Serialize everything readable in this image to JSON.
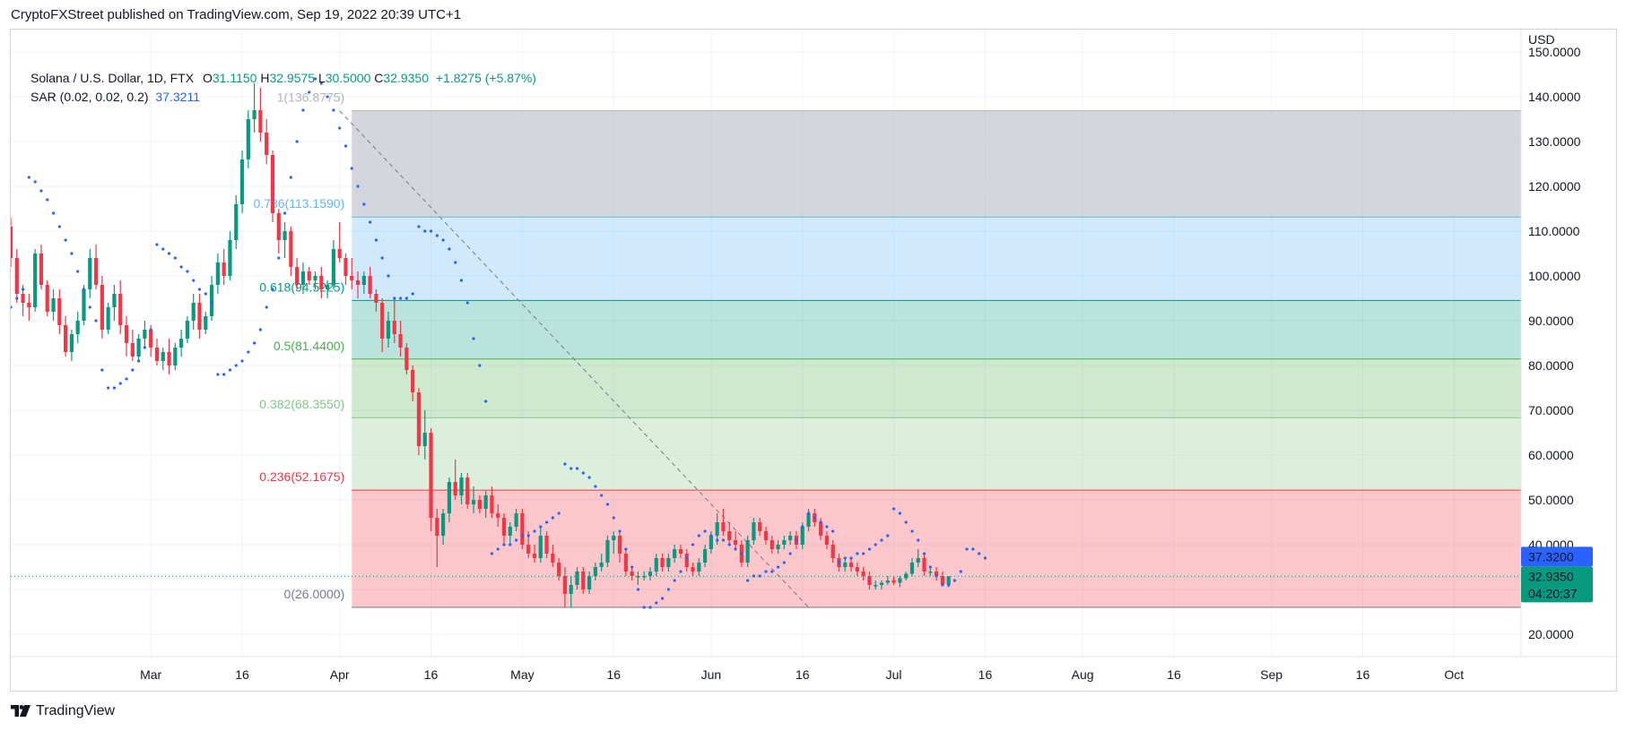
{
  "header": {
    "text": "CryptoFXStreet published on TradingView.com, Sep 19, 2022 20:39 UTC+1"
  },
  "legend": {
    "symbol": "Solana / U.S. Dollar, 1D, FTX",
    "open_label": "O",
    "open": "31.1150",
    "high_label": "H",
    "high": "32.9575",
    "low_label": "L",
    "low": "30.5000",
    "close_label": "C",
    "close": "32.9350",
    "change": "+1.8275 (+5.87%)",
    "indicator": "SAR (0.02, 0.02, 0.2)",
    "indicator_value": "37.3211"
  },
  "footer": {
    "brand": "TradingView"
  },
  "colors": {
    "up": "#089981",
    "down": "#f23645",
    "sar": "#2962ff",
    "fib_1": "#b2b5be",
    "fib_0786": "#64b5f6",
    "fib_0618": "#089981",
    "fib_05": "#4caf50",
    "fib_0382": "#81c784",
    "fib_0236": "#f23645",
    "fib_0": "#787b86"
  },
  "chart_data": {
    "type": "candlestick",
    "currency": "USD",
    "ylim": [
      15,
      155
    ],
    "y_ticks": [
      "150.0000",
      "140.0000",
      "130.0000",
      "120.0000",
      "110.0000",
      "100.0000",
      "90.0000",
      "80.0000",
      "70.0000",
      "60.0000",
      "50.0000",
      "40.0000",
      "30.0000",
      "20.0000"
    ],
    "y_tick_values": [
      150,
      140,
      130,
      120,
      110,
      100,
      90,
      80,
      70,
      60,
      50,
      40,
      30,
      20
    ],
    "x_ticks": [
      "Mar",
      "16",
      "Apr",
      "16",
      "May",
      "16",
      "Jun",
      "16",
      "Jul",
      "16",
      "Aug",
      "16",
      "Sep",
      "16",
      "Oct"
    ],
    "x_tick_days": [
      32,
      47,
      63,
      78,
      93,
      108,
      124,
      139,
      154,
      169,
      185,
      200,
      216,
      231,
      246
    ],
    "day_range": [
      9,
      257
    ],
    "candles_start_day": 9,
    "fibonacci": [
      {
        "level": "1",
        "label": "1(136.8775)",
        "price": 136.8775,
        "key": "fib_1"
      },
      {
        "level": "0.786",
        "label": "0.786(113.1590)",
        "price": 113.159,
        "key": "fib_0786"
      },
      {
        "level": "0.618",
        "label": "0.618(94.5225)",
        "price": 94.5225,
        "key": "fib_0618"
      },
      {
        "level": "0.5",
        "label": "0.5(81.4400)",
        "price": 81.44,
        "key": "fib_05"
      },
      {
        "level": "0.382",
        "label": "0.382(68.3550)",
        "price": 68.355,
        "key": "fib_0382"
      },
      {
        "level": "0.236",
        "label": "0.236(52.1675)",
        "price": 52.1675,
        "key": "fib_0236"
      },
      {
        "level": "0",
        "label": "0(26.0000)",
        "price": 26.0,
        "key": "fib_0"
      }
    ],
    "fib_start_day": 65,
    "trend_line": {
      "from_day": 63,
      "from_price": 136.8775,
      "to_day": 140,
      "to_price": 26.0
    },
    "sar_label": "37.3200",
    "sar_label_price": 37.32,
    "last_price_label": "32.9350",
    "countdown": "04:20:37",
    "last_price": 32.935,
    "ohlc": [
      [
        111,
        113,
        102,
        104
      ],
      [
        104,
        106,
        94,
        96
      ],
      [
        96,
        98,
        91,
        94
      ],
      [
        94,
        96,
        90,
        93
      ],
      [
        93,
        106,
        92,
        105
      ],
      [
        105,
        107,
        97,
        98
      ],
      [
        98,
        99,
        91,
        92
      ],
      [
        92,
        97,
        90,
        95
      ],
      [
        95,
        97,
        87,
        89
      ],
      [
        89,
        91,
        82,
        83
      ],
      [
        83,
        88,
        81,
        87
      ],
      [
        87,
        92,
        85,
        90
      ],
      [
        90,
        98,
        89,
        97
      ],
      [
        97,
        106,
        95,
        104
      ],
      [
        104,
        107,
        97,
        98
      ],
      [
        98,
        100,
        86,
        88
      ],
      [
        88,
        94,
        87,
        93
      ],
      [
        93,
        98,
        90,
        96
      ],
      [
        96,
        99,
        87,
        89
      ],
      [
        89,
        91,
        82,
        85
      ],
      [
        85,
        88,
        81,
        82
      ],
      [
        82,
        87,
        81,
        86
      ],
      [
        86,
        90,
        84,
        88
      ],
      [
        88,
        89,
        82,
        84
      ],
      [
        84,
        86,
        80,
        81
      ],
      [
        81,
        84,
        79,
        83
      ],
      [
        83,
        86,
        78,
        80
      ],
      [
        80,
        85,
        79,
        84
      ],
      [
        84,
        88,
        82,
        86
      ],
      [
        86,
        91,
        85,
        90
      ],
      [
        90,
        96,
        88,
        94
      ],
      [
        94,
        96,
        86,
        88
      ],
      [
        88,
        92,
        87,
        91
      ],
      [
        91,
        100,
        90,
        98
      ],
      [
        98,
        105,
        96,
        103
      ],
      [
        103,
        106,
        98,
        100
      ],
      [
        100,
        110,
        99,
        108
      ],
      [
        108,
        118,
        106,
        116
      ],
      [
        116,
        128,
        114,
        126
      ],
      [
        126,
        137,
        124,
        135
      ],
      [
        135,
        143,
        132,
        137
      ],
      [
        137,
        142,
        130,
        132
      ],
      [
        132,
        135,
        125,
        127
      ],
      [
        127,
        128,
        112,
        114
      ],
      [
        114,
        115,
        105,
        108
      ],
      [
        108,
        112,
        104,
        110
      ],
      [
        110,
        111,
        100,
        102
      ],
      [
        102,
        104,
        97,
        98
      ],
      [
        98,
        103,
        96,
        101
      ],
      [
        101,
        102,
        98,
        99
      ],
      [
        99,
        101,
        97,
        100
      ],
      [
        100,
        102,
        95,
        97
      ],
      [
        97,
        99,
        95,
        98
      ],
      [
        98,
        108,
        97,
        106
      ],
      [
        106,
        112,
        103,
        104
      ],
      [
        104,
        105,
        98,
        100
      ],
      [
        100,
        104,
        97,
        99
      ],
      [
        99,
        101,
        95,
        98
      ],
      [
        98,
        101,
        96,
        100
      ],
      [
        100,
        102,
        95,
        96
      ],
      [
        96,
        97,
        92,
        94
      ],
      [
        94,
        95,
        83,
        86
      ],
      [
        86,
        92,
        84,
        90
      ],
      [
        90,
        95,
        85,
        87
      ],
      [
        87,
        90,
        82,
        84
      ],
      [
        84,
        85,
        78,
        79
      ],
      [
        79,
        80,
        72,
        74
      ],
      [
        74,
        75,
        60,
        62
      ],
      [
        62,
        70,
        59,
        65
      ],
      [
        65,
        66,
        43,
        46
      ],
      [
        46,
        48,
        35,
        42
      ],
      [
        42,
        48,
        40,
        47
      ],
      [
        47,
        55,
        45,
        54
      ],
      [
        54,
        59,
        50,
        51
      ],
      [
        51,
        56,
        49,
        55
      ],
      [
        55,
        56,
        48,
        49
      ],
      [
        49,
        53,
        47,
        50
      ],
      [
        50,
        51,
        47,
        48
      ],
      [
        48,
        52,
        46,
        51
      ],
      [
        51,
        53,
        46,
        47
      ],
      [
        47,
        49,
        44,
        46
      ],
      [
        46,
        47,
        40,
        42
      ],
      [
        42,
        45,
        40,
        44
      ],
      [
        44,
        48,
        43,
        47
      ],
      [
        47,
        48,
        39,
        40
      ],
      [
        40,
        43,
        37,
        38
      ],
      [
        38,
        40,
        36,
        37
      ],
      [
        37,
        44,
        36,
        42
      ],
      [
        42,
        43,
        37,
        38
      ],
      [
        38,
        40,
        35,
        36
      ],
      [
        36,
        37,
        32,
        33
      ],
      [
        33,
        35,
        26,
        29
      ],
      [
        29,
        33,
        26,
        31
      ],
      [
        31,
        35,
        30,
        34
      ],
      [
        34,
        35,
        29,
        30
      ],
      [
        30,
        34,
        29,
        33
      ],
      [
        33,
        36,
        32,
        35
      ],
      [
        35,
        38,
        34,
        36
      ],
      [
        36,
        42,
        35,
        41
      ],
      [
        41,
        43,
        38,
        42
      ],
      [
        42,
        43,
        36,
        38
      ],
      [
        38,
        39,
        33,
        34
      ],
      [
        34,
        35,
        32,
        33
      ],
      [
        33,
        34,
        31,
        33
      ],
      [
        33,
        34,
        32,
        33
      ],
      [
        33,
        35,
        32,
        34
      ],
      [
        34,
        38,
        33,
        37
      ],
      [
        37,
        38,
        34,
        35
      ],
      [
        35,
        38,
        34,
        37
      ],
      [
        37,
        40,
        36,
        39
      ],
      [
        39,
        40,
        37,
        38
      ],
      [
        38,
        39,
        34,
        35
      ],
      [
        35,
        36,
        33,
        34
      ],
      [
        34,
        37,
        33,
        36
      ],
      [
        36,
        40,
        35,
        39
      ],
      [
        39,
        43,
        38,
        42
      ],
      [
        42,
        47,
        40,
        45
      ],
      [
        45,
        48,
        42,
        43
      ],
      [
        43,
        45,
        40,
        41
      ],
      [
        41,
        43,
        39,
        40
      ],
      [
        40,
        41,
        35,
        36
      ],
      [
        36,
        42,
        35,
        41
      ],
      [
        41,
        46,
        40,
        45
      ],
      [
        45,
        46,
        42,
        43
      ],
      [
        43,
        44,
        40,
        41
      ],
      [
        41,
        42,
        38,
        39
      ],
      [
        39,
        41,
        38,
        40
      ],
      [
        40,
        42,
        39,
        41
      ],
      [
        41,
        43,
        40,
        42
      ],
      [
        42,
        43,
        39,
        40
      ],
      [
        40,
        45,
        39,
        44
      ],
      [
        44,
        48,
        43,
        47
      ],
      [
        47,
        48,
        44,
        45
      ],
      [
        45,
        46,
        41,
        42
      ],
      [
        42,
        43,
        39,
        40
      ],
      [
        40,
        41,
        36,
        37
      ],
      [
        37,
        38,
        34,
        35
      ],
      [
        35,
        37,
        34,
        36
      ],
      [
        36,
        37,
        34,
        35
      ],
      [
        35,
        36,
        33,
        34
      ],
      [
        34,
        35,
        32,
        33
      ],
      [
        33,
        34,
        30,
        31
      ],
      [
        31,
        32,
        30,
        31
      ],
      [
        31,
        32,
        30,
        31.5
      ],
      [
        31.5,
        33,
        31,
        32
      ],
      [
        32,
        33,
        31,
        31.5
      ],
      [
        31.5,
        33,
        30.5,
        32.5
      ],
      [
        32.5,
        34,
        32,
        33.5
      ],
      [
        33.5,
        37,
        33,
        36
      ],
      [
        36,
        39,
        35,
        37
      ],
      [
        37,
        38,
        33,
        34
      ],
      [
        34,
        35,
        33,
        34
      ],
      [
        34,
        35,
        32,
        33
      ],
      [
        33,
        34,
        31,
        31.1
      ],
      [
        31.115,
        32.9575,
        30.5,
        32.935
      ]
    ],
    "sar": [
      [
        9,
        93
      ],
      [
        10,
        95
      ],
      [
        11,
        97
      ],
      [
        12,
        122
      ],
      [
        13,
        121
      ],
      [
        14,
        119
      ],
      [
        15,
        117
      ],
      [
        16,
        114
      ],
      [
        17,
        111
      ],
      [
        18,
        108
      ],
      [
        19,
        105
      ],
      [
        20,
        101
      ],
      [
        21,
        97
      ],
      [
        22,
        93
      ],
      [
        23,
        90
      ],
      [
        24,
        79
      ],
      [
        25,
        75
      ],
      [
        26,
        75
      ],
      [
        27,
        76
      ],
      [
        28,
        77
      ],
      [
        29,
        79
      ],
      [
        30,
        81
      ],
      [
        31,
        84
      ],
      [
        32,
        88
      ],
      [
        33,
        107
      ],
      [
        34,
        106
      ],
      [
        35,
        105
      ],
      [
        36,
        104
      ],
      [
        37,
        102
      ],
      [
        38,
        101
      ],
      [
        39,
        99
      ],
      [
        40,
        97
      ],
      [
        41,
        96
      ],
      [
        42,
        94
      ],
      [
        43,
        78
      ],
      [
        44,
        78
      ],
      [
        45,
        79
      ],
      [
        46,
        80
      ],
      [
        47,
        81
      ],
      [
        48,
        83
      ],
      [
        49,
        85
      ],
      [
        50,
        88
      ],
      [
        51,
        93
      ],
      [
        52,
        97
      ],
      [
        53,
        104
      ],
      [
        54,
        114
      ],
      [
        55,
        122
      ],
      [
        56,
        130
      ],
      [
        57,
        137
      ],
      [
        58,
        141
      ],
      [
        59,
        144
      ],
      [
        60,
        143
      ],
      [
        61,
        140
      ],
      [
        62,
        137
      ],
      [
        63,
        133
      ],
      [
        64,
        129
      ],
      [
        65,
        124
      ],
      [
        66,
        120
      ],
      [
        67,
        116
      ],
      [
        68,
        112
      ],
      [
        69,
        108
      ],
      [
        70,
        104
      ],
      [
        71,
        100
      ],
      [
        72,
        95
      ],
      [
        73,
        95
      ],
      [
        74,
        95
      ],
      [
        75,
        96
      ],
      [
        76,
        111
      ],
      [
        77,
        110
      ],
      [
        78,
        110
      ],
      [
        79,
        109
      ],
      [
        80,
        108
      ],
      [
        81,
        106
      ],
      [
        82,
        103
      ],
      [
        83,
        99
      ],
      [
        84,
        94
      ],
      [
        85,
        86
      ],
      [
        86,
        80
      ],
      [
        87,
        72
      ],
      [
        88,
        38
      ],
      [
        89,
        39
      ],
      [
        90,
        40
      ],
      [
        91,
        40
      ],
      [
        92,
        41
      ],
      [
        93,
        42
      ],
      [
        94,
        42
      ],
      [
        95,
        43
      ],
      [
        96,
        44
      ],
      [
        97,
        45
      ],
      [
        98,
        46
      ],
      [
        99,
        47
      ],
      [
        100,
        58
      ],
      [
        101,
        57
      ],
      [
        102,
        57
      ],
      [
        103,
        56
      ],
      [
        104,
        55
      ],
      [
        105,
        53
      ],
      [
        106,
        51
      ],
      [
        107,
        49
      ],
      [
        108,
        46
      ],
      [
        109,
        43
      ],
      [
        110,
        39
      ],
      [
        111,
        35
      ],
      [
        112,
        30
      ],
      [
        113,
        26
      ],
      [
        114,
        26
      ],
      [
        115,
        27
      ],
      [
        116,
        28
      ],
      [
        117,
        30
      ],
      [
        118,
        32
      ],
      [
        119,
        34
      ],
      [
        120,
        37
      ],
      [
        121,
        40
      ],
      [
        122,
        42
      ],
      [
        123,
        43
      ],
      [
        124,
        42
      ],
      [
        125,
        41
      ],
      [
        126,
        41
      ],
      [
        127,
        40
      ],
      [
        128,
        39
      ],
      [
        129,
        38
      ],
      [
        130,
        32
      ],
      [
        131,
        33
      ],
      [
        132,
        33
      ],
      [
        133,
        34
      ],
      [
        134,
        34
      ],
      [
        135,
        35
      ],
      [
        136,
        36
      ],
      [
        137,
        38
      ],
      [
        138,
        41
      ],
      [
        139,
        44
      ],
      [
        140,
        47
      ],
      [
        141,
        46
      ],
      [
        142,
        45
      ],
      [
        143,
        44
      ],
      [
        144,
        43
      ],
      [
        145,
        36
      ],
      [
        146,
        37
      ],
      [
        147,
        37
      ],
      [
        148,
        38
      ],
      [
        149,
        38
      ],
      [
        150,
        39
      ],
      [
        151,
        40
      ],
      [
        152,
        41
      ],
      [
        153,
        42
      ],
      [
        154,
        48
      ],
      [
        155,
        47
      ],
      [
        156,
        45
      ],
      [
        157,
        43
      ],
      [
        158,
        41
      ],
      [
        159,
        38
      ],
      [
        160,
        35
      ],
      [
        161,
        33
      ],
      [
        162,
        31
      ],
      [
        163,
        31
      ],
      [
        164,
        32
      ],
      [
        165,
        34
      ],
      [
        166,
        39
      ],
      [
        167,
        39
      ],
      [
        168,
        38
      ],
      [
        169,
        37
      ]
    ]
  }
}
